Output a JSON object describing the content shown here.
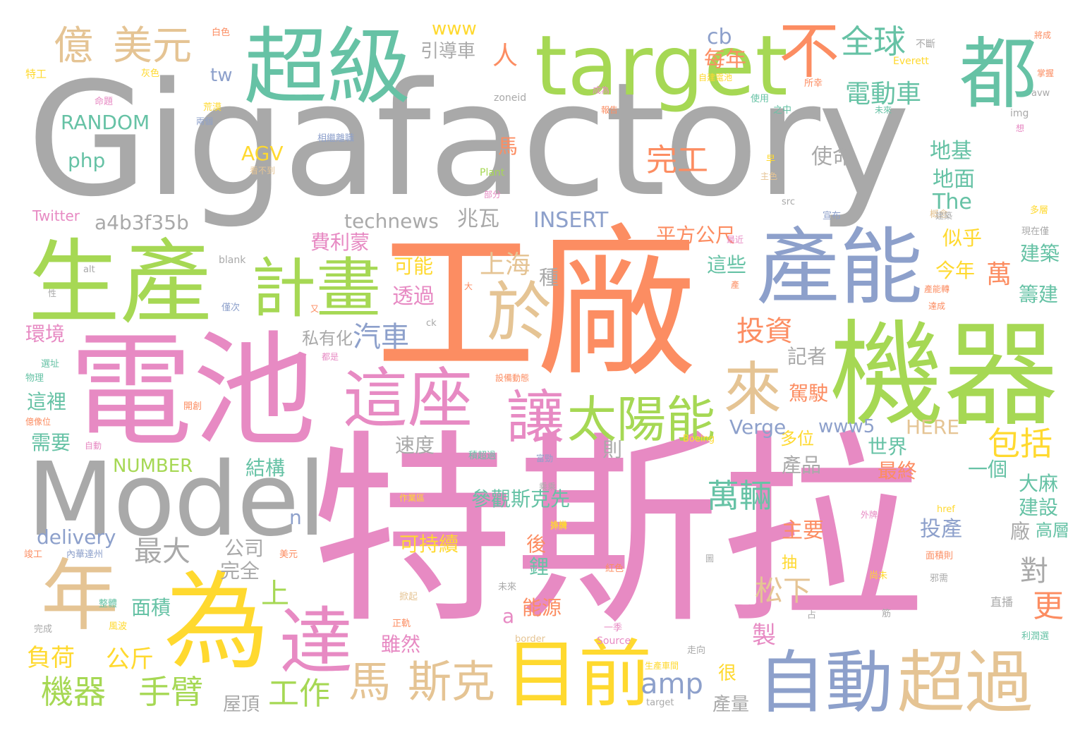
{
  "palette": {
    "gray": "#a9a9a9",
    "orange": "#fc8d62",
    "pink": "#e78ac3",
    "green": "#a6d854",
    "blue": "#8da0cb",
    "teal": "#66c2a5",
    "tan": "#e5c494",
    "yellow": "#ffd92f",
    "background": "#ffffff"
  },
  "words": {
    "gigafactory": "Gigafactory",
    "tesla": "特斯拉",
    "factory": "工廠",
    "battery": "電池",
    "machine": "機器",
    "capacity": "產能",
    "production": "生產",
    "model": "Model",
    "super": "超級",
    "target": "target",
    "all": "都",
    "not": "不",
    "plan": "計畫",
    "at": "於",
    "this_seat": "這座",
    "let": "讓",
    "solar": "太陽能",
    "come": "來",
    "for": "為",
    "year": "年",
    "reach": "達",
    "currently": "目前",
    "automatic": "自動",
    "exceed": "超過",
    "horse": "馬",
    "sike": "斯克",
    "yi": "億",
    "usd": "美元",
    "global": "全球",
    "ev": "電動車",
    "person": "人",
    "car": "汽車",
    "invest": "投資",
    "shanghai": "上海",
    "wan": "萬",
    "include": "包括",
    "wanliang": "萬輛",
    "robot": "機器",
    "arm": "手臂",
    "work": "工作",
    "amp": "amp",
    "random": "RANDOM",
    "php": "php",
    "agv": "AGV",
    "www": "www",
    "yindaoche": "引導車",
    "tw": "tw",
    "cb": "cb",
    "meinian": "每年",
    "wangong": "完工",
    "ma2": "馬",
    "dijie": "地基",
    "dimian": "地面",
    "the": "The",
    "shiming": "使命",
    "technews": "technews",
    "zhaowa": "兆瓦",
    "insert": "INSERT",
    "pingfang": "平方公尺",
    "hash": "a4b3f35b",
    "feilimeng": "費利蒙",
    "keneng": "可能",
    "touguo": "透過",
    "zhong": "種",
    "zhexie": "這些",
    "jinnian": "今年",
    "sihu": "似乎",
    "jianzhu": "建築",
    "choujian": "籌建",
    "huanjing": "環境",
    "siyouhua": "私有化",
    "jizhe": "記者",
    "zhe_li": "這裡",
    "xuyao": "需要",
    "jiashi": "駕駛",
    "verge": "Verge",
    "www5": "www5",
    "here": "HERE",
    "number": "NUMBER",
    "jiegou": "結構",
    "sudu": "速度",
    "ze": "則",
    "duowei": "多位",
    "shijie": "世界",
    "chanpin": "產品",
    "zuizhong": "最終",
    "yige": "一個",
    "damá": "大麻",
    "jianshe": "建設",
    "canguan": "參觀斯克先",
    "delivery": "delivery",
    "zuida": "最大",
    "gongsi": "公司",
    "wanquan": "完全",
    "n": "n",
    "kechixu": "可持續",
    "hou": "後",
    "li": "鋰",
    "touchan": "投產",
    "zhuyao": "主要",
    "chang": "廠",
    "gaoceng": "高層",
    "dui": "對",
    "geng": "更",
    "songxia": "松下",
    "shang": "上",
    "mianji": "面積",
    "a": "a",
    "nengyuan": "能源",
    "chou": "抽",
    "fuhe": "負荷",
    "gongjin": "公斤",
    "suiran": "雖然",
    "zhi": "製",
    "hen": "很",
    "chanliang": "產量",
    "wuding": "屋頂",
    "twitter": "Twitter",
    "blank": "blank",
    "alt": "alt",
    "zoneid": "zoneid",
    "img": "img",
    "plant": "Plant",
    "src": "src",
    "everett": "Everett",
    "avw": "avw",
    "boeing": "Boeing",
    "href": "href",
    "source": "Source",
    "border": "border",
    "ck": "ck",
    "small_1": "白色",
    "small_2": "灰色",
    "small_3": "特工",
    "small_4": "命題",
    "small_5": "荒漠",
    "small_6": "兩個",
    "small_7": "相繼離職",
    "small_8": "看不到",
    "small_9": "早",
    "small_10": "主色",
    "small_11": "部分",
    "small_12": "使用",
    "small_13": "之中",
    "small_14": "所幸",
    "small_15": "不斷",
    "small_16": "自建電池",
    "small_17": "將成",
    "small_18": "掌握",
    "small_19": "成為",
    "small_20": "未來",
    "small_21": "想",
    "small_22": "多層",
    "small_23": "現在僅",
    "small_24": "宣布",
    "small_25": "概念",
    "small_26": "報告",
    "small_27": "最近",
    "small_28": "產能轉",
    "small_29": "達成",
    "small_30": "大",
    "small_31": "性",
    "small_32": "僅次",
    "small_33": "又",
    "small_34": "選址",
    "small_35": "物理",
    "small_36": "都是",
    "small_37": "億像位",
    "small_38": "設備動態",
    "small_39": "開創",
    "small_40": "自動",
    "small_41": "作業區",
    "small_42": "積超過",
    "small_43": "富勁",
    "small_44": "換機",
    "small_45": "外牌",
    "small_46": "竣工",
    "small_47": "內華達州",
    "small_48": "美元",
    "small_49": "面積則",
    "small_50": "紅色",
    "small_51": "尚未",
    "small_52": "邪需",
    "small_53": "直播",
    "small_54": "整體",
    "small_55": "掀起",
    "small_56": "未來",
    "small_57": "占",
    "small_58": "筋",
    "small_59": "完成",
    "small_60": "風波",
    "small_61": "正軌",
    "small_62": "一季",
    "small_63": "走向",
    "small_64": "利潤選",
    "small_65": "生產車間",
    "small_66": "圖",
    "small_67": "乘乘",
    "small_68": "外牌",
    "small_69": "產",
    "small_70": "建築"
  }
}
